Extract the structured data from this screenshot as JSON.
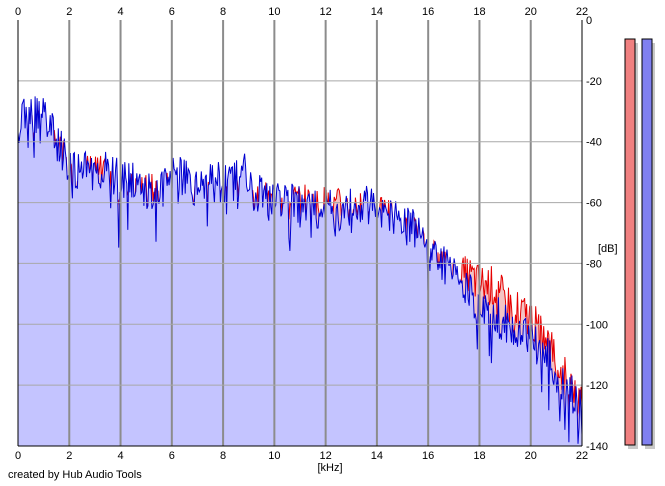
{
  "chart_data": {
    "type": "area",
    "title": "",
    "xlabel": "[kHz]",
    "ylabel": "[dB]",
    "xlim": [
      0,
      22
    ],
    "ylim": [
      -140,
      0
    ],
    "x_ticks": [
      0,
      2,
      4,
      6,
      8,
      10,
      12,
      14,
      16,
      18,
      20,
      22
    ],
    "y_ticks": [
      0,
      -20,
      -40,
      -60,
      -80,
      -100,
      -120,
      -140
    ],
    "grid": true,
    "legend": "none",
    "series": [
      {
        "color": "#e60000",
        "fill": "#f4c4c4",
        "x": [
          0,
          0.2,
          0.4,
          0.6,
          0.8,
          1.0,
          1.2,
          1.4,
          1.6,
          1.8,
          2.0,
          2.4,
          2.8,
          3.2,
          3.6,
          4.0,
          4.4,
          4.8,
          5.2,
          5.6,
          6.0,
          6.4,
          6.8,
          7.2,
          7.6,
          8.0,
          8.4,
          8.8,
          9.2,
          9.6,
          10.0,
          10.4,
          10.8,
          11.2,
          11.6,
          12.0,
          12.4,
          12.8,
          13.2,
          13.6,
          14.0,
          14.4,
          14.8,
          15.2,
          15.6,
          16.0,
          16.4,
          16.8,
          17.2,
          17.6,
          18.0,
          18.4,
          18.8,
          19.2,
          19.6,
          20.0,
          20.4,
          20.8,
          21.2,
          21.6,
          22.0
        ],
        "values": [
          -44,
          -38,
          -36,
          -33,
          -36,
          -35,
          -38,
          -41,
          -44,
          -47,
          -52,
          -53,
          -50,
          -51,
          -55,
          -55,
          -56,
          -58,
          -57,
          -58,
          -56,
          -56,
          -58,
          -60,
          -57,
          -61,
          -58,
          -56,
          -62,
          -60,
          -61,
          -61,
          -60,
          -60,
          -62,
          -61,
          -62,
          -62,
          -63,
          -63,
          -66,
          -64,
          -67,
          -70,
          -72,
          -79,
          -80,
          -84,
          -85,
          -84,
          -87,
          -87,
          -90,
          -94,
          -96,
          -98,
          -104,
          -108,
          -116,
          -120,
          -127
        ]
      },
      {
        "color": "#0000d0",
        "fill": "#c4c4ff",
        "x": [
          0,
          0.2,
          0.4,
          0.6,
          0.8,
          1.0,
          1.2,
          1.4,
          1.6,
          1.8,
          2.0,
          2.4,
          2.8,
          3.2,
          3.6,
          4.0,
          4.4,
          4.8,
          5.2,
          5.6,
          6.0,
          6.4,
          6.8,
          7.2,
          7.6,
          8.0,
          8.4,
          8.8,
          9.2,
          9.6,
          10.0,
          10.4,
          10.8,
          11.2,
          11.6,
          12.0,
          12.4,
          12.8,
          13.2,
          13.6,
          14.0,
          14.4,
          14.8,
          15.2,
          15.6,
          16.0,
          16.4,
          16.8,
          17.2,
          17.6,
          18.0,
          18.4,
          18.8,
          19.2,
          19.6,
          20.0,
          20.4,
          20.8,
          21.2,
          21.6,
          22.0
        ],
        "values": [
          -40,
          -30,
          -33,
          -31,
          -32,
          -30,
          -36,
          -37,
          -41,
          -45,
          -49,
          -51,
          -49,
          -49,
          -51,
          -53,
          -53,
          -56,
          -57,
          -55,
          -52,
          -52,
          -54,
          -55,
          -53,
          -54,
          -53,
          -50,
          -58,
          -58,
          -61,
          -59,
          -60,
          -63,
          -63,
          -60,
          -63,
          -61,
          -64,
          -60,
          -63,
          -64,
          -63,
          -68,
          -68,
          -75,
          -78,
          -83,
          -85,
          -90,
          -94,
          -95,
          -98,
          -102,
          -104,
          -105,
          -108,
          -112,
          -119,
          -122,
          -130
        ]
      }
    ],
    "level_meters": [
      {
        "color": "#f08080",
        "level": 0
      },
      {
        "color": "#8080f0",
        "level": 0
      }
    ]
  },
  "footer": {
    "credit": "created by Hub Audio Tools"
  }
}
